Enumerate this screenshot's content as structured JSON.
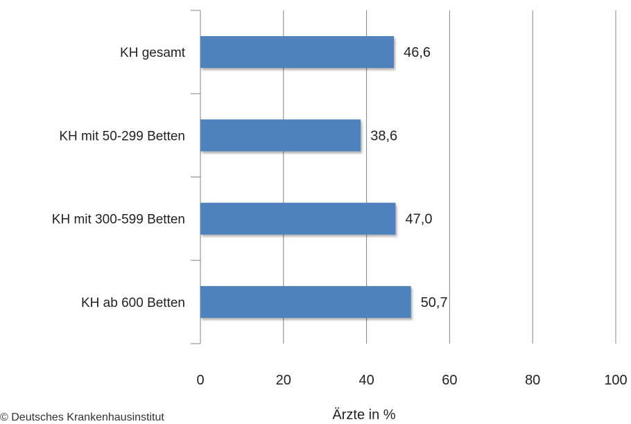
{
  "chart_data": {
    "type": "bar",
    "orientation": "horizontal",
    "categories": [
      "KH gesamt",
      "KH mit 50-299 Betten",
      "KH mit 300-599 Betten",
      "KH ab 600 Betten"
    ],
    "values": [
      46.6,
      38.6,
      47.0,
      50.7
    ],
    "value_labels": [
      "46,6",
      "38,6",
      "47,0",
      "50,7"
    ],
    "xlabel": "Ärzte in %",
    "xlim": [
      0,
      100
    ],
    "xticks": [
      0,
      20,
      40,
      60,
      80,
      100
    ],
    "xtick_labels": [
      "0",
      "20",
      "40",
      "60",
      "80",
      "100"
    ],
    "grid": "vertical",
    "bar_color": "#4f81bd",
    "grid_color": "#808080"
  },
  "source": "© Deutsches Krankenhausinstitut"
}
